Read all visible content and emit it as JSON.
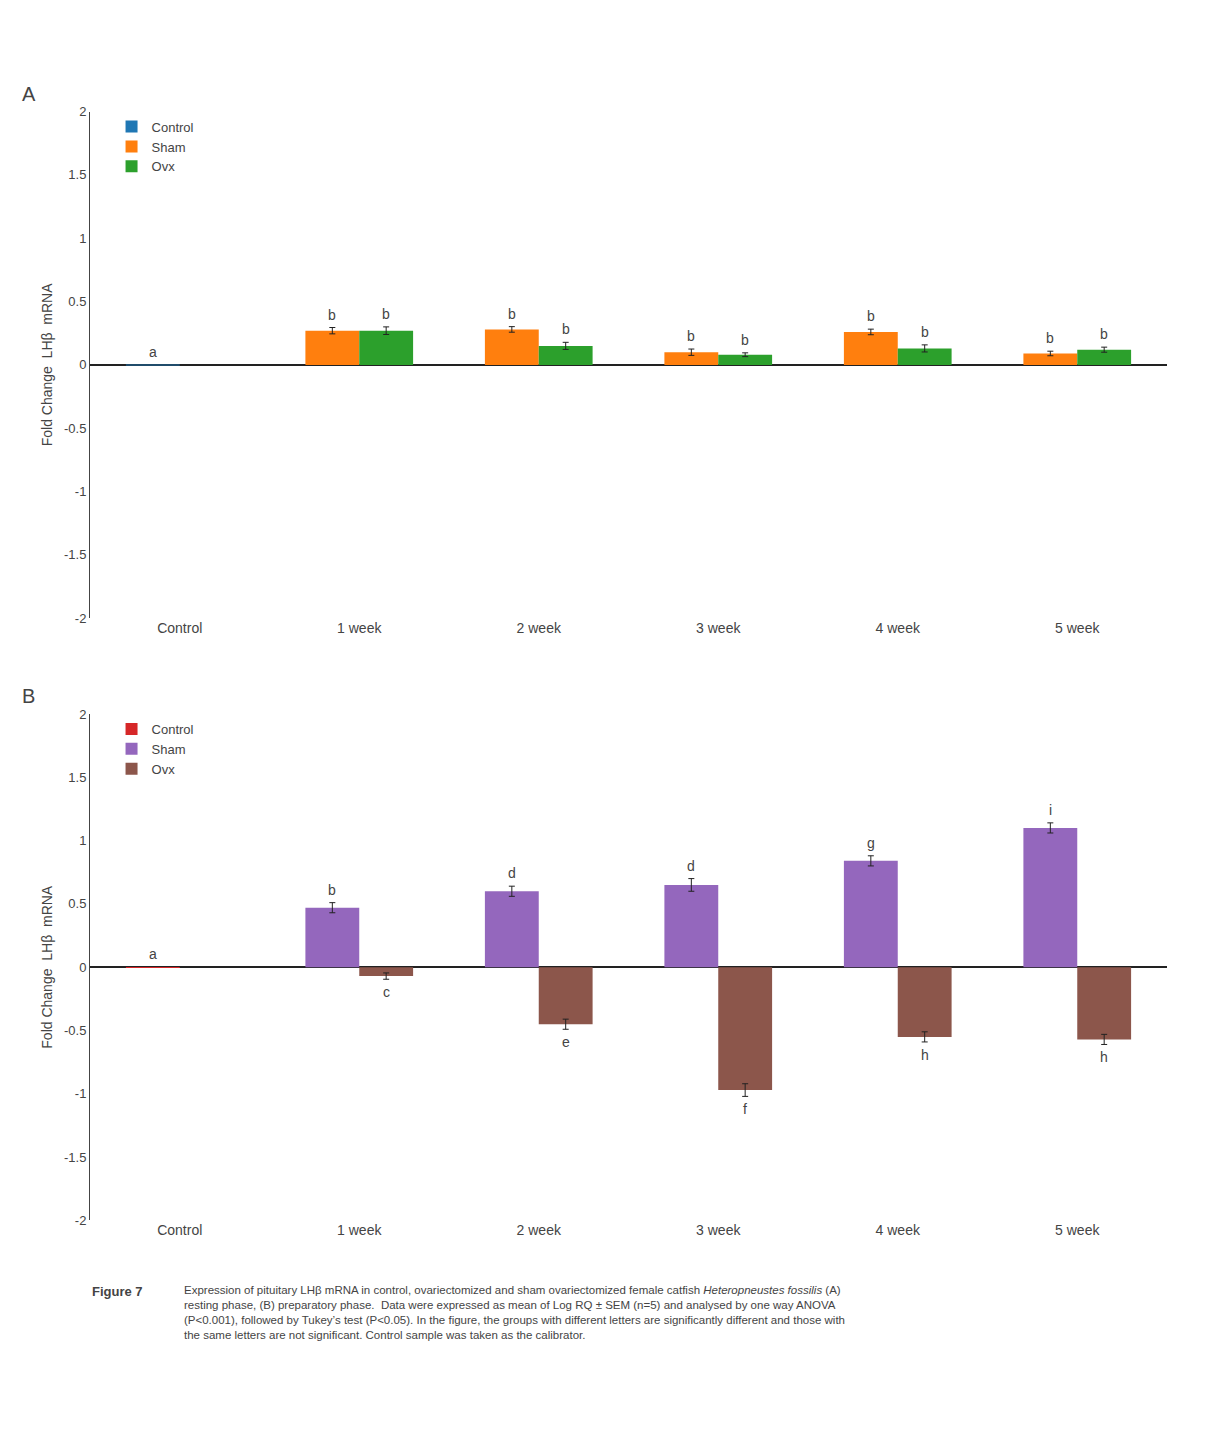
{
  "chart_data": [
    {
      "type": "bar",
      "title": "A",
      "categories": [
        "Control",
        "1 week",
        "2 week",
        "3 week",
        "4 week",
        "5 week"
      ],
      "series": [
        {
          "name": "Control",
          "values": [
            0.001,
            null,
            null,
            null,
            null,
            null
          ],
          "labels": [
            "a",
            null,
            null,
            null,
            null,
            null
          ]
        },
        {
          "name": "Sham",
          "values": [
            null,
            0.27,
            0.28,
            0.1,
            0.26,
            0.09
          ],
          "errors": [
            null,
            0.025,
            0.022,
            0.025,
            0.022,
            0.018
          ],
          "labels": [
            null,
            "b",
            "b",
            "b",
            "b",
            "b"
          ]
        },
        {
          "name": "Ovx",
          "values": [
            null,
            0.27,
            0.15,
            0.08,
            0.13,
            0.12
          ],
          "errors": [
            null,
            0.03,
            0.028,
            0.015,
            0.028,
            0.02
          ],
          "labels": [
            null,
            "b",
            "b",
            "b",
            "b",
            "b"
          ]
        }
      ],
      "ylabel": "Fold Change  LHβ  mRNA",
      "ylim": [
        -2,
        2
      ],
      "yticks": [
        -2,
        -1.5,
        -1,
        -0.5,
        0,
        0.5,
        1,
        1.5,
        2
      ],
      "grid": false,
      "legend": "upper left"
    },
    {
      "type": "bar",
      "title": "B",
      "categories": [
        "Control",
        "1 week",
        "2 week",
        "3 week",
        "4 week",
        "5 week"
      ],
      "series": [
        {
          "name": "Control",
          "values": [
            0.001,
            null,
            null,
            null,
            null,
            null
          ],
          "labels": [
            "a",
            null,
            null,
            null,
            null,
            null
          ]
        },
        {
          "name": "Sham",
          "values": [
            null,
            0.47,
            0.6,
            0.65,
            0.84,
            1.1
          ],
          "errors": [
            null,
            0.04,
            0.04,
            0.05,
            0.04,
            0.04
          ],
          "labels": [
            null,
            "b",
            "d",
            "d",
            "g",
            "i"
          ]
        },
        {
          "name": "Ovx",
          "values": [
            null,
            -0.07,
            -0.45,
            -0.97,
            -0.55,
            -0.57
          ],
          "errors": [
            null,
            0.025,
            0.04,
            0.05,
            0.04,
            0.04
          ],
          "labels": [
            null,
            "c",
            "e",
            "f",
            "h",
            "h"
          ]
        }
      ],
      "ylabel": "Fold Change  LHβ  mRNA",
      "ylim": [
        -2,
        2
      ],
      "yticks": [
        -2,
        -1.5,
        -1,
        -0.5,
        0,
        0.5,
        1,
        1.5,
        2
      ],
      "grid": false,
      "legend": "upper left"
    }
  ],
  "caption": {
    "label": "Figure 7",
    "italic": "Heteropneustes fossilis",
    "lines": [
      "Expression of pituitary LHβ mRNA in control, ovariectomized and sham ovariectomized female catfish Heteropneustes fossilis (A)",
      "resting phase, (B) preparatory phase.  Data were expressed as mean of Log RQ ± SEM (n=5) and analysed by one way ANOVA",
      "(P<0.001), followed by Tukey’s test (P<0.05). In the figure, the groups with different letters are significantly different and those with",
      "the same letters are not significant. Control sample was taken as the calibrator."
    ]
  }
}
